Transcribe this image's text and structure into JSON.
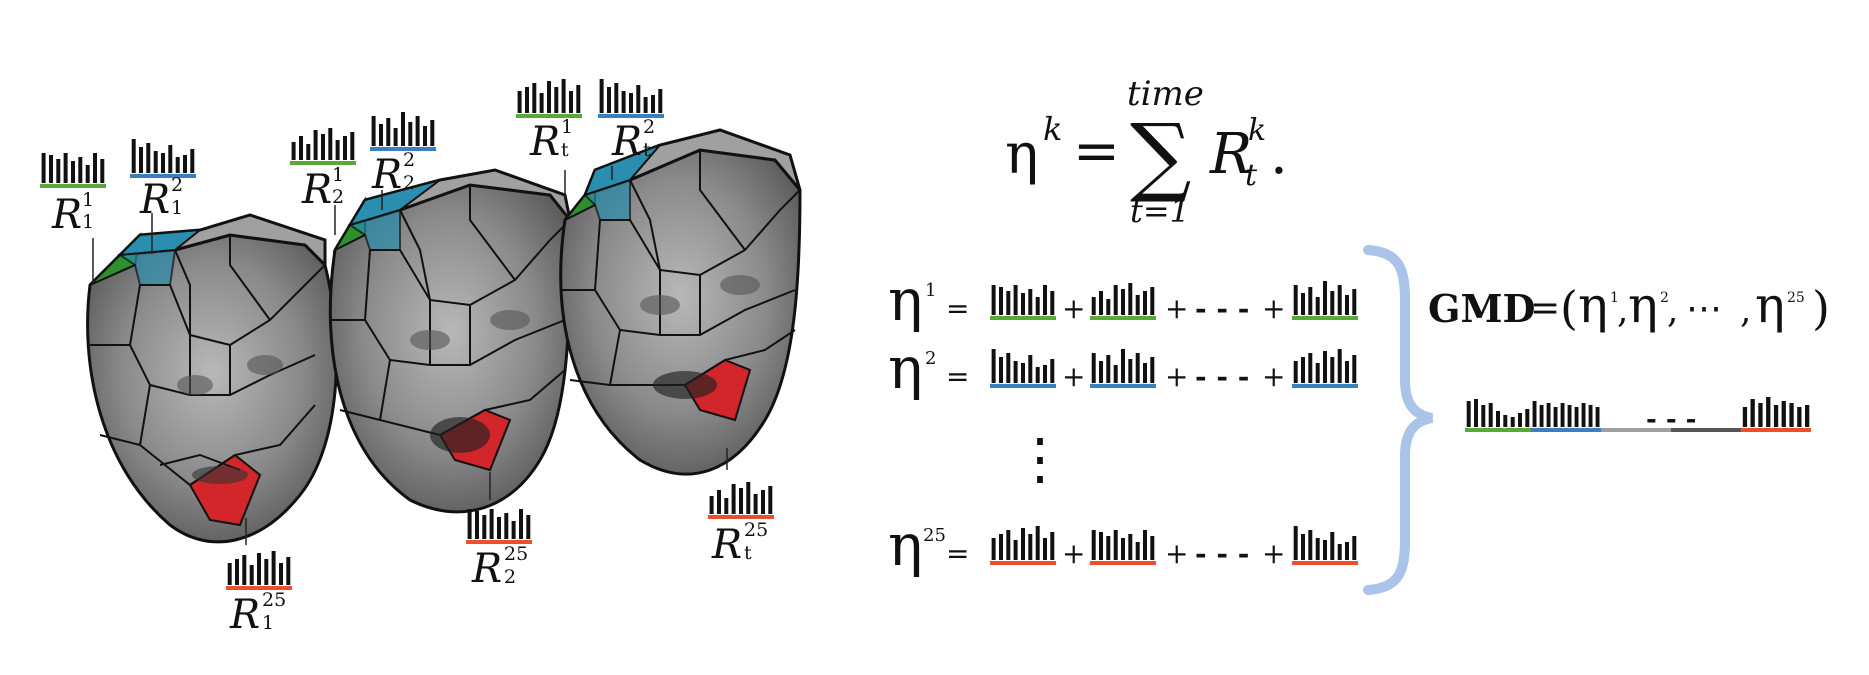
{
  "colors": {
    "green": "#5aa83a",
    "blue": "#3a7fc2",
    "red": "#e8502e",
    "brace": "#a9c4e8",
    "region_green": "#2e8f2e",
    "region_blue": "#2a8fae",
    "region_red": "#d3262b",
    "face_gray": "#8f8f8f"
  },
  "region_labels": {
    "frame1": {
      "green": {
        "base": "R",
        "sub": "1",
        "sup": "1"
      },
      "blue": {
        "base": "R",
        "sub": "1",
        "sup": "2"
      },
      "red": {
        "base": "R",
        "sub": "1",
        "sup": "25"
      }
    },
    "frame2": {
      "green": {
        "base": "R",
        "sub": "2",
        "sup": "1"
      },
      "blue": {
        "base": "R",
        "sub": "2",
        "sup": "2"
      },
      "red": {
        "base": "R",
        "sub": "2",
        "sup": "25"
      }
    },
    "frame3": {
      "green": {
        "base": "R",
        "sub": "t",
        "sup": "1"
      },
      "blue": {
        "base": "R",
        "sub": "t",
        "sup": "2"
      },
      "red": {
        "base": "R",
        "sub": "t",
        "sup": "25"
      }
    }
  },
  "formula": {
    "lhs": "η",
    "lhs_sup": "k",
    "equals": "=",
    "sigma": "∑",
    "upper": "time",
    "lower": "t=1",
    "term": "R",
    "term_sub": "t",
    "term_sup": "k",
    "period": "."
  },
  "equations": [
    {
      "eta": "η",
      "sup": "1",
      "equals": "=",
      "plus": "+",
      "ellipsis": "- - -",
      "color": "green"
    },
    {
      "eta": "η",
      "sup": "2",
      "equals": "=",
      "plus": "+",
      "ellipsis": "- - -",
      "color": "blue"
    },
    {
      "eta": "η",
      "sup": "25",
      "equals": "=",
      "plus": "+",
      "ellipsis": "- - -",
      "color": "red"
    }
  ],
  "vdots": "⋮",
  "gmd": {
    "label": "GMD",
    "equals": "=",
    "open": "(",
    "eta": "η",
    "sup1": "1",
    "sup2": "2",
    "dots": "⋯",
    "sup3": "25",
    "comma": ",",
    "close": ")",
    "bar_dots": "- - -"
  }
}
